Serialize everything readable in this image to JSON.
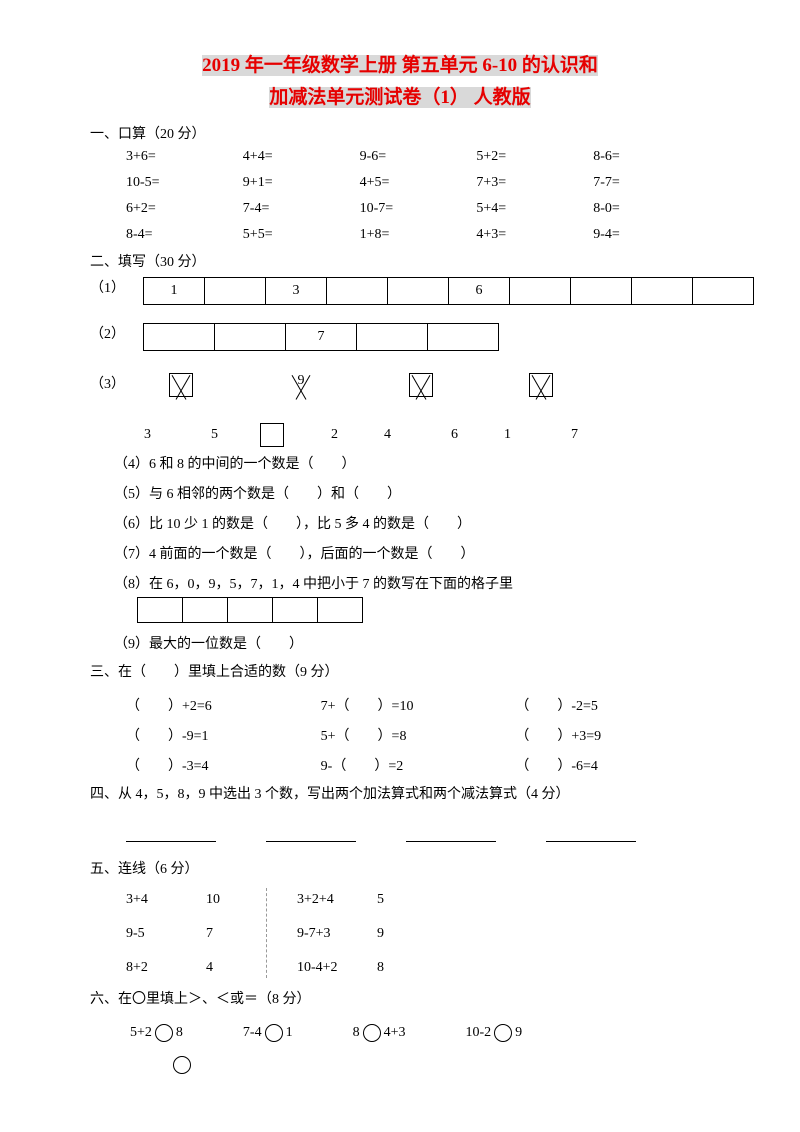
{
  "title": {
    "line1_a": "2019",
    "line1_b": " 年一年级数学上册 第五单元 6-10 的认识和",
    "line2": "加减法单元测试卷（1） 人教版"
  },
  "s1": {
    "h": "一、口算（20 分）",
    "items": [
      "3+6=",
      "4+4=",
      "9-6=",
      "5+2=",
      "8-6=",
      "10-5=",
      "9+1=",
      "4+5=",
      "7+3=",
      "7-7=",
      "6+2=",
      "7-4=",
      "10-7=",
      "5+4=",
      "8-0=",
      "8-4=",
      "5+5=",
      "1+8=",
      "4+3=",
      "9-4="
    ]
  },
  "s2": {
    "h": "二、填写（30 分）",
    "q1": {
      "lbl": "（1）",
      "cells": [
        "1",
        "",
        "3",
        "",
        "",
        "6",
        "",
        "",
        "",
        ""
      ]
    },
    "q2": {
      "lbl": "（2）",
      "cells": [
        "",
        "",
        "7",
        "",
        ""
      ]
    },
    "q3": {
      "lbl": "（3）",
      "trees": [
        {
          "top": "",
          "l": "3",
          "r": "5",
          "lbox": false
        },
        {
          "topn": "9",
          "l": "",
          "r": "2",
          "lbox": true
        },
        {
          "top": "",
          "l": "4",
          "r": "6",
          "lbox": false
        },
        {
          "top": "",
          "l": "1",
          "r": "7",
          "lbox": false
        }
      ]
    },
    "q4": "（4）6 和 8 的中间的一个数是（　　）",
    "q5": "（5）与 6 相邻的两个数是（　　）和（　　）",
    "q6": "（6）比 10 少 1 的数是（　　），比 5 多 4 的数是（　　）",
    "q7": "（7）4 前面的一个数是（　　），后面的一个数是（　　）",
    "q8": "（8）在 6，0，9，5，7，1，4 中把小于 7 的数写在下面的格子里",
    "q9": "（9）最大的一位数是（　　）"
  },
  "s3": {
    "h": "三、在（　　）里填上合适的数（9 分）",
    "items": [
      "（　　）+2=6",
      "7+（　　）=10",
      "（　　）-2=5",
      "（　　）-9=1",
      "5+（　　）=8",
      "（　　）+3=9",
      "（　　）-3=4",
      "9-（　　）=2",
      "（　　）-6=4"
    ]
  },
  "s4": {
    "h": "四、从 4，5，8，9 中选出 3 个数，写出两个加法算式和两个减法算式（4 分）"
  },
  "s5": {
    "h": "五、连线（6 分）",
    "left": [
      [
        "3+4",
        "10"
      ],
      [
        "9-5",
        "7"
      ],
      [
        "8+2",
        "4"
      ]
    ],
    "right": [
      [
        "3+2+4",
        "5"
      ],
      [
        "9-7+3",
        "9"
      ],
      [
        "10-4+2",
        "8"
      ]
    ]
  },
  "s6": {
    "h": "六、在〇里填上＞、＜或＝（8 分）",
    "items": [
      [
        "5+2",
        "8"
      ],
      [
        "7-4",
        "1"
      ],
      [
        "8",
        "4+3"
      ],
      [
        "10-2",
        "9"
      ]
    ]
  }
}
